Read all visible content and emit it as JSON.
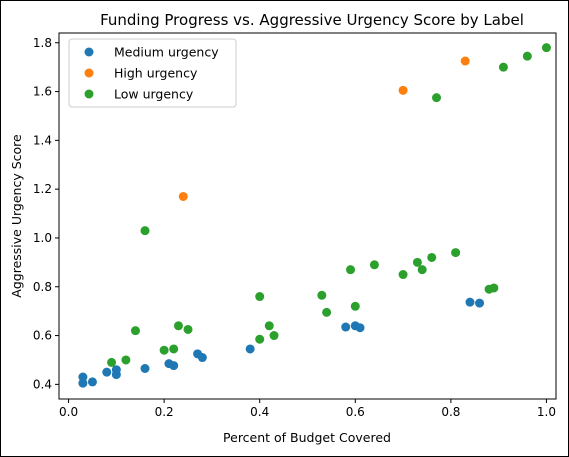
{
  "chart_data": {
    "type": "scatter",
    "title": "Funding Progress vs. Aggressive Urgency Score by Label",
    "xlabel": "Percent of Budget Covered",
    "ylabel": "Aggressive Urgency Score",
    "xlim": [
      -0.02,
      1.02
    ],
    "ylim": [
      0.34,
      1.84
    ],
    "xticks": [
      0.0,
      0.2,
      0.4,
      0.6,
      0.8,
      1.0
    ],
    "xtick_labels": [
      "0.0",
      "0.2",
      "0.4",
      "0.6",
      "0.8",
      "1.0"
    ],
    "yticks": [
      0.4,
      0.6,
      0.8,
      1.0,
      1.2,
      1.4,
      1.6,
      1.8
    ],
    "ytick_labels": [
      "0.4",
      "0.6",
      "0.8",
      "1.0",
      "1.2",
      "1.4",
      "1.6",
      "1.8"
    ],
    "grid": false,
    "legend_position": "top-left",
    "series": [
      {
        "name": "Medium urgency",
        "color": "#1f77b4",
        "points": [
          [
            0.03,
            0.405
          ],
          [
            0.03,
            0.43
          ],
          [
            0.05,
            0.41
          ],
          [
            0.08,
            0.45
          ],
          [
            0.1,
            0.44
          ],
          [
            0.1,
            0.46
          ],
          [
            0.16,
            0.465
          ],
          [
            0.21,
            0.485
          ],
          [
            0.22,
            0.477
          ],
          [
            0.27,
            0.525
          ],
          [
            0.28,
            0.51
          ],
          [
            0.38,
            0.545
          ],
          [
            0.58,
            0.635
          ],
          [
            0.6,
            0.64
          ],
          [
            0.61,
            0.632
          ],
          [
            0.84,
            0.737
          ],
          [
            0.86,
            0.733
          ]
        ]
      },
      {
        "name": "High urgency",
        "color": "#ff7f0e",
        "points": [
          [
            0.24,
            1.17
          ],
          [
            0.7,
            1.605
          ],
          [
            0.83,
            1.725
          ]
        ]
      },
      {
        "name": "Low urgency",
        "color": "#2ca02c",
        "points": [
          [
            0.09,
            0.49
          ],
          [
            0.12,
            0.5
          ],
          [
            0.14,
            0.62
          ],
          [
            0.16,
            1.03
          ],
          [
            0.2,
            0.54
          ],
          [
            0.22,
            0.545
          ],
          [
            0.23,
            0.64
          ],
          [
            0.25,
            0.625
          ],
          [
            0.4,
            0.76
          ],
          [
            0.4,
            0.585
          ],
          [
            0.42,
            0.64
          ],
          [
            0.43,
            0.6
          ],
          [
            0.53,
            0.765
          ],
          [
            0.54,
            0.695
          ],
          [
            0.59,
            0.87
          ],
          [
            0.6,
            0.72
          ],
          [
            0.64,
            0.89
          ],
          [
            0.7,
            0.85
          ],
          [
            0.73,
            0.9
          ],
          [
            0.74,
            0.87
          ],
          [
            0.76,
            0.92
          ],
          [
            0.77,
            1.575
          ],
          [
            0.81,
            0.94
          ],
          [
            0.88,
            0.79
          ],
          [
            0.89,
            0.795
          ],
          [
            0.91,
            1.7
          ],
          [
            0.96,
            1.745
          ],
          [
            1.0,
            1.78
          ]
        ]
      }
    ]
  }
}
